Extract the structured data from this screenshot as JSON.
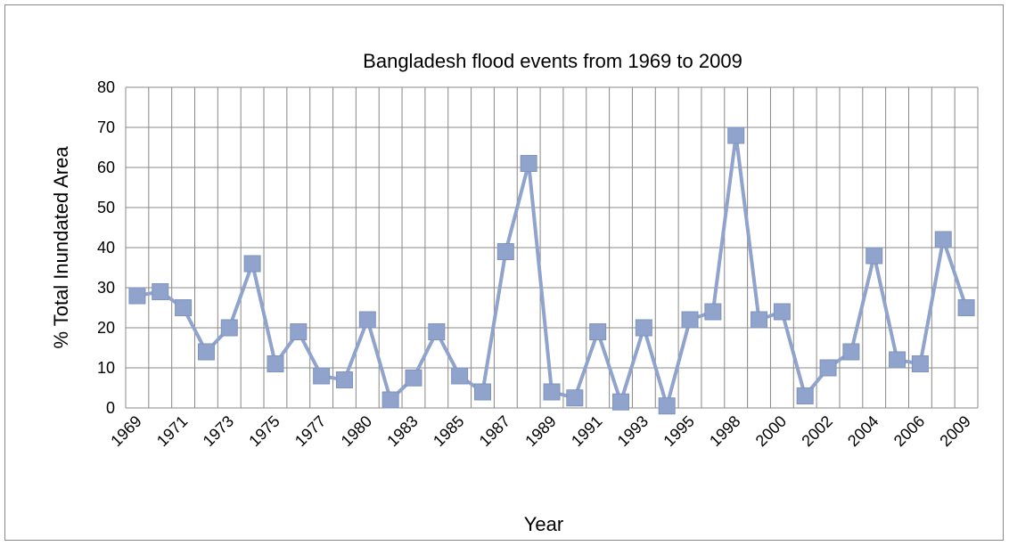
{
  "chart_data": {
    "type": "line",
    "title": "Bangladesh flood events from 1969 to 2009",
    "x_label": "Year",
    "y_label": "% Total Inundated Area",
    "categories": [
      "1969",
      null,
      "1971",
      null,
      "1973",
      null,
      "1975",
      null,
      "1977",
      null,
      "1980",
      null,
      "1983",
      null,
      "1985",
      null,
      "1987",
      null,
      "1989",
      null,
      "1991",
      null,
      "1993",
      null,
      "1995",
      null,
      "1998",
      null,
      "2000",
      null,
      "2002",
      null,
      "2004",
      null,
      "2006",
      null,
      "2009"
    ],
    "series": [
      {
        "name": "% Total Inundated Area",
        "color": "#8fa3cd",
        "values": [
          28,
          29,
          25,
          14,
          20,
          36,
          11,
          19,
          8,
          7,
          22,
          2,
          7.5,
          19,
          8,
          4,
          39,
          61,
          4,
          2.5,
          19,
          1.5,
          20,
          0.5,
          22,
          24,
          68,
          22,
          24,
          3,
          10,
          14,
          38,
          12,
          11,
          42,
          25
        ]
      }
    ],
    "ylim": [
      0,
      80
    ],
    "yticks": [
      0,
      10,
      20,
      30,
      40,
      50,
      60,
      70,
      80
    ],
    "grid": true
  }
}
